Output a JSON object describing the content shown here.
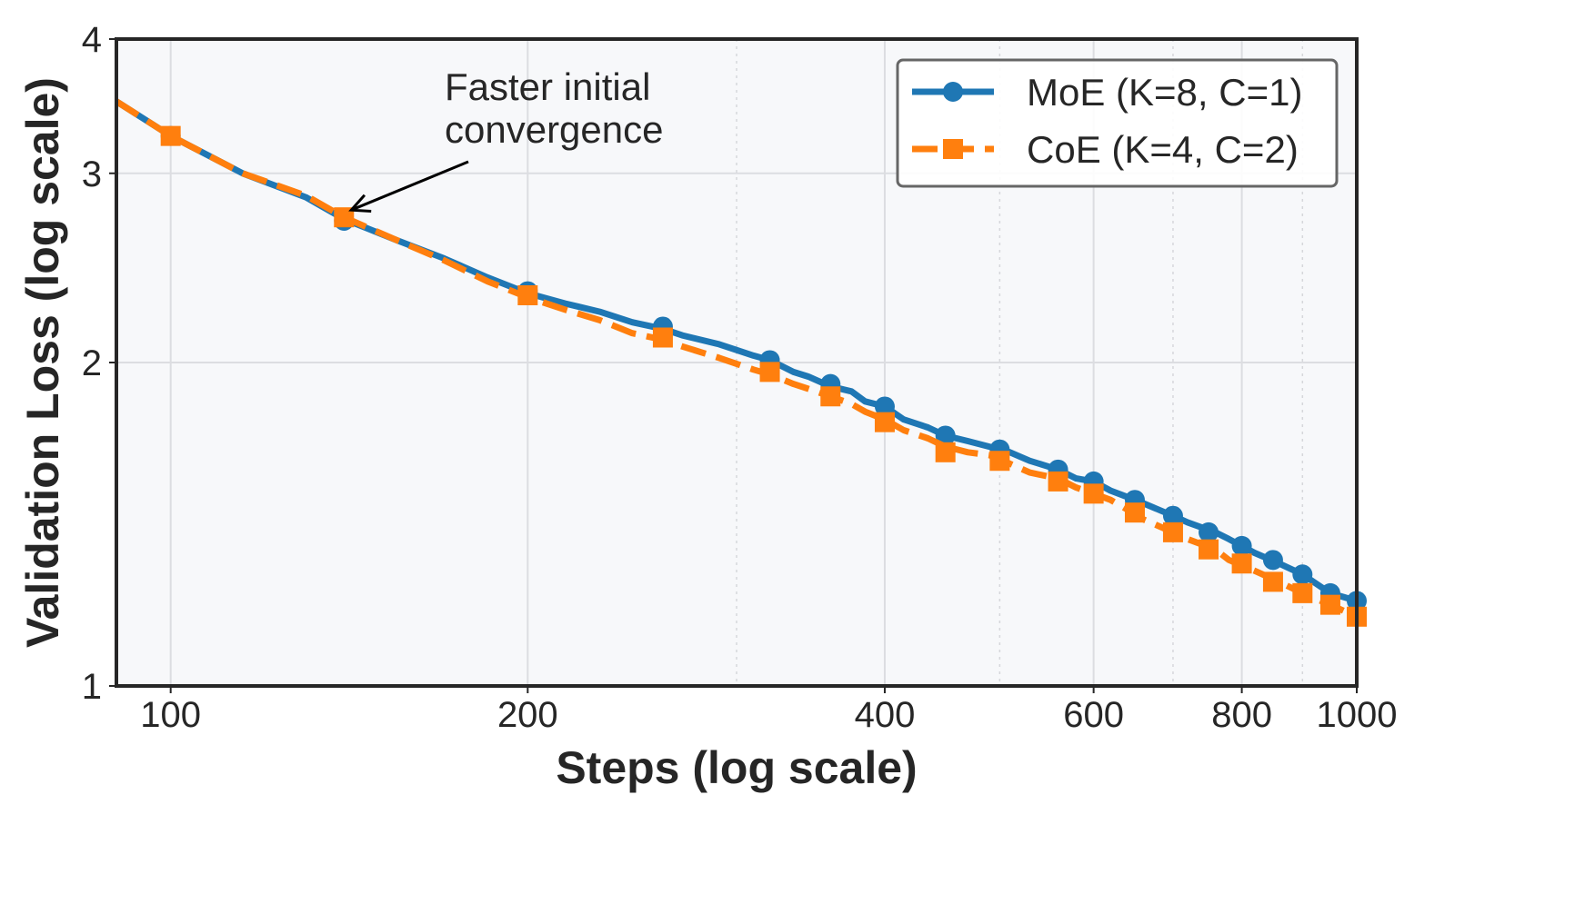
{
  "chart_data": {
    "type": "line",
    "title": "",
    "xlabel": "Steps (log scale)",
    "ylabel": "Validation Loss (log scale)",
    "xscale": "log",
    "yscale": "log",
    "xlim": [
      90,
      1000
    ],
    "ylim": [
      1,
      4
    ],
    "xticks": [
      100,
      200,
      400,
      600,
      800,
      1000
    ],
    "yticks": [
      1,
      2,
      3,
      4
    ],
    "grid": true,
    "legend_position": "top-right",
    "annotation": {
      "lines": [
        "Faster initial",
        "convergence"
      ],
      "point": [
        140,
        2.73
      ]
    },
    "series": [
      {
        "name": "MoE (K=8, C=1)",
        "color": "#1f77b4",
        "linestyle": "solid",
        "marker": "circle",
        "x": [
          90,
          100,
          115,
          130,
          140,
          155,
          170,
          185,
          200,
          215,
          230,
          245,
          260,
          270,
          290,
          310,
          320,
          335,
          345,
          360,
          375,
          385,
          400,
          415,
          435,
          450,
          470,
          490,
          510,
          530,
          560,
          580,
          600,
          620,
          640,
          660,
          700,
          720,
          760,
          780,
          820,
          860,
          900,
          950,
          1000
        ],
        "y": [
          3.5,
          3.25,
          3.0,
          2.85,
          2.72,
          2.6,
          2.5,
          2.4,
          2.32,
          2.27,
          2.23,
          2.18,
          2.15,
          2.12,
          2.08,
          2.03,
          2.01,
          1.96,
          1.94,
          1.9,
          1.88,
          1.84,
          1.82,
          1.77,
          1.74,
          1.71,
          1.69,
          1.67,
          1.65,
          1.62,
          1.59,
          1.56,
          1.55,
          1.52,
          1.5,
          1.48,
          1.44,
          1.42,
          1.39,
          1.37,
          1.33,
          1.3,
          1.27,
          1.22,
          1.2
        ]
      },
      {
        "name": "CoE (K=4, C=2)",
        "color": "#ff7f0e",
        "linestyle": "dashed",
        "marker": "square",
        "x": [
          90,
          100,
          115,
          130,
          140,
          155,
          170,
          185,
          200,
          215,
          230,
          245,
          260,
          270,
          290,
          310,
          320,
          335,
          345,
          360,
          375,
          385,
          400,
          415,
          435,
          450,
          470,
          490,
          510,
          530,
          560,
          580,
          600,
          620,
          640,
          660,
          700,
          720,
          760,
          780,
          820,
          860,
          900,
          950,
          1000
        ],
        "y": [
          3.5,
          3.25,
          3.0,
          2.86,
          2.73,
          2.6,
          2.49,
          2.38,
          2.3,
          2.24,
          2.19,
          2.13,
          2.1,
          2.07,
          2.02,
          1.97,
          1.95,
          1.91,
          1.89,
          1.86,
          1.83,
          1.8,
          1.77,
          1.73,
          1.7,
          1.67,
          1.65,
          1.64,
          1.61,
          1.58,
          1.56,
          1.53,
          1.51,
          1.49,
          1.46,
          1.43,
          1.39,
          1.37,
          1.34,
          1.31,
          1.28,
          1.25,
          1.22,
          1.19,
          1.16
        ]
      }
    ],
    "series_markers": [
      {
        "x": [
          100,
          140,
          200,
          260,
          320,
          360,
          400,
          450,
          500,
          560,
          600,
          650,
          700,
          750,
          800,
          850,
          900,
          950,
          1000
        ],
        "y": [
          3.25,
          2.71,
          2.33,
          2.16,
          2.01,
          1.91,
          1.82,
          1.71,
          1.66,
          1.59,
          1.55,
          1.49,
          1.44,
          1.39,
          1.35,
          1.31,
          1.27,
          1.22,
          1.2
        ]
      },
      {
        "x": [
          100,
          140,
          200,
          260,
          320,
          360,
          400,
          450,
          500,
          560,
          600,
          650,
          700,
          750,
          800,
          850,
          900,
          950,
          1000
        ],
        "y": [
          3.25,
          2.73,
          2.31,
          2.11,
          1.96,
          1.86,
          1.76,
          1.65,
          1.62,
          1.55,
          1.51,
          1.45,
          1.39,
          1.34,
          1.3,
          1.25,
          1.22,
          1.19,
          1.16
        ]
      }
    ]
  }
}
